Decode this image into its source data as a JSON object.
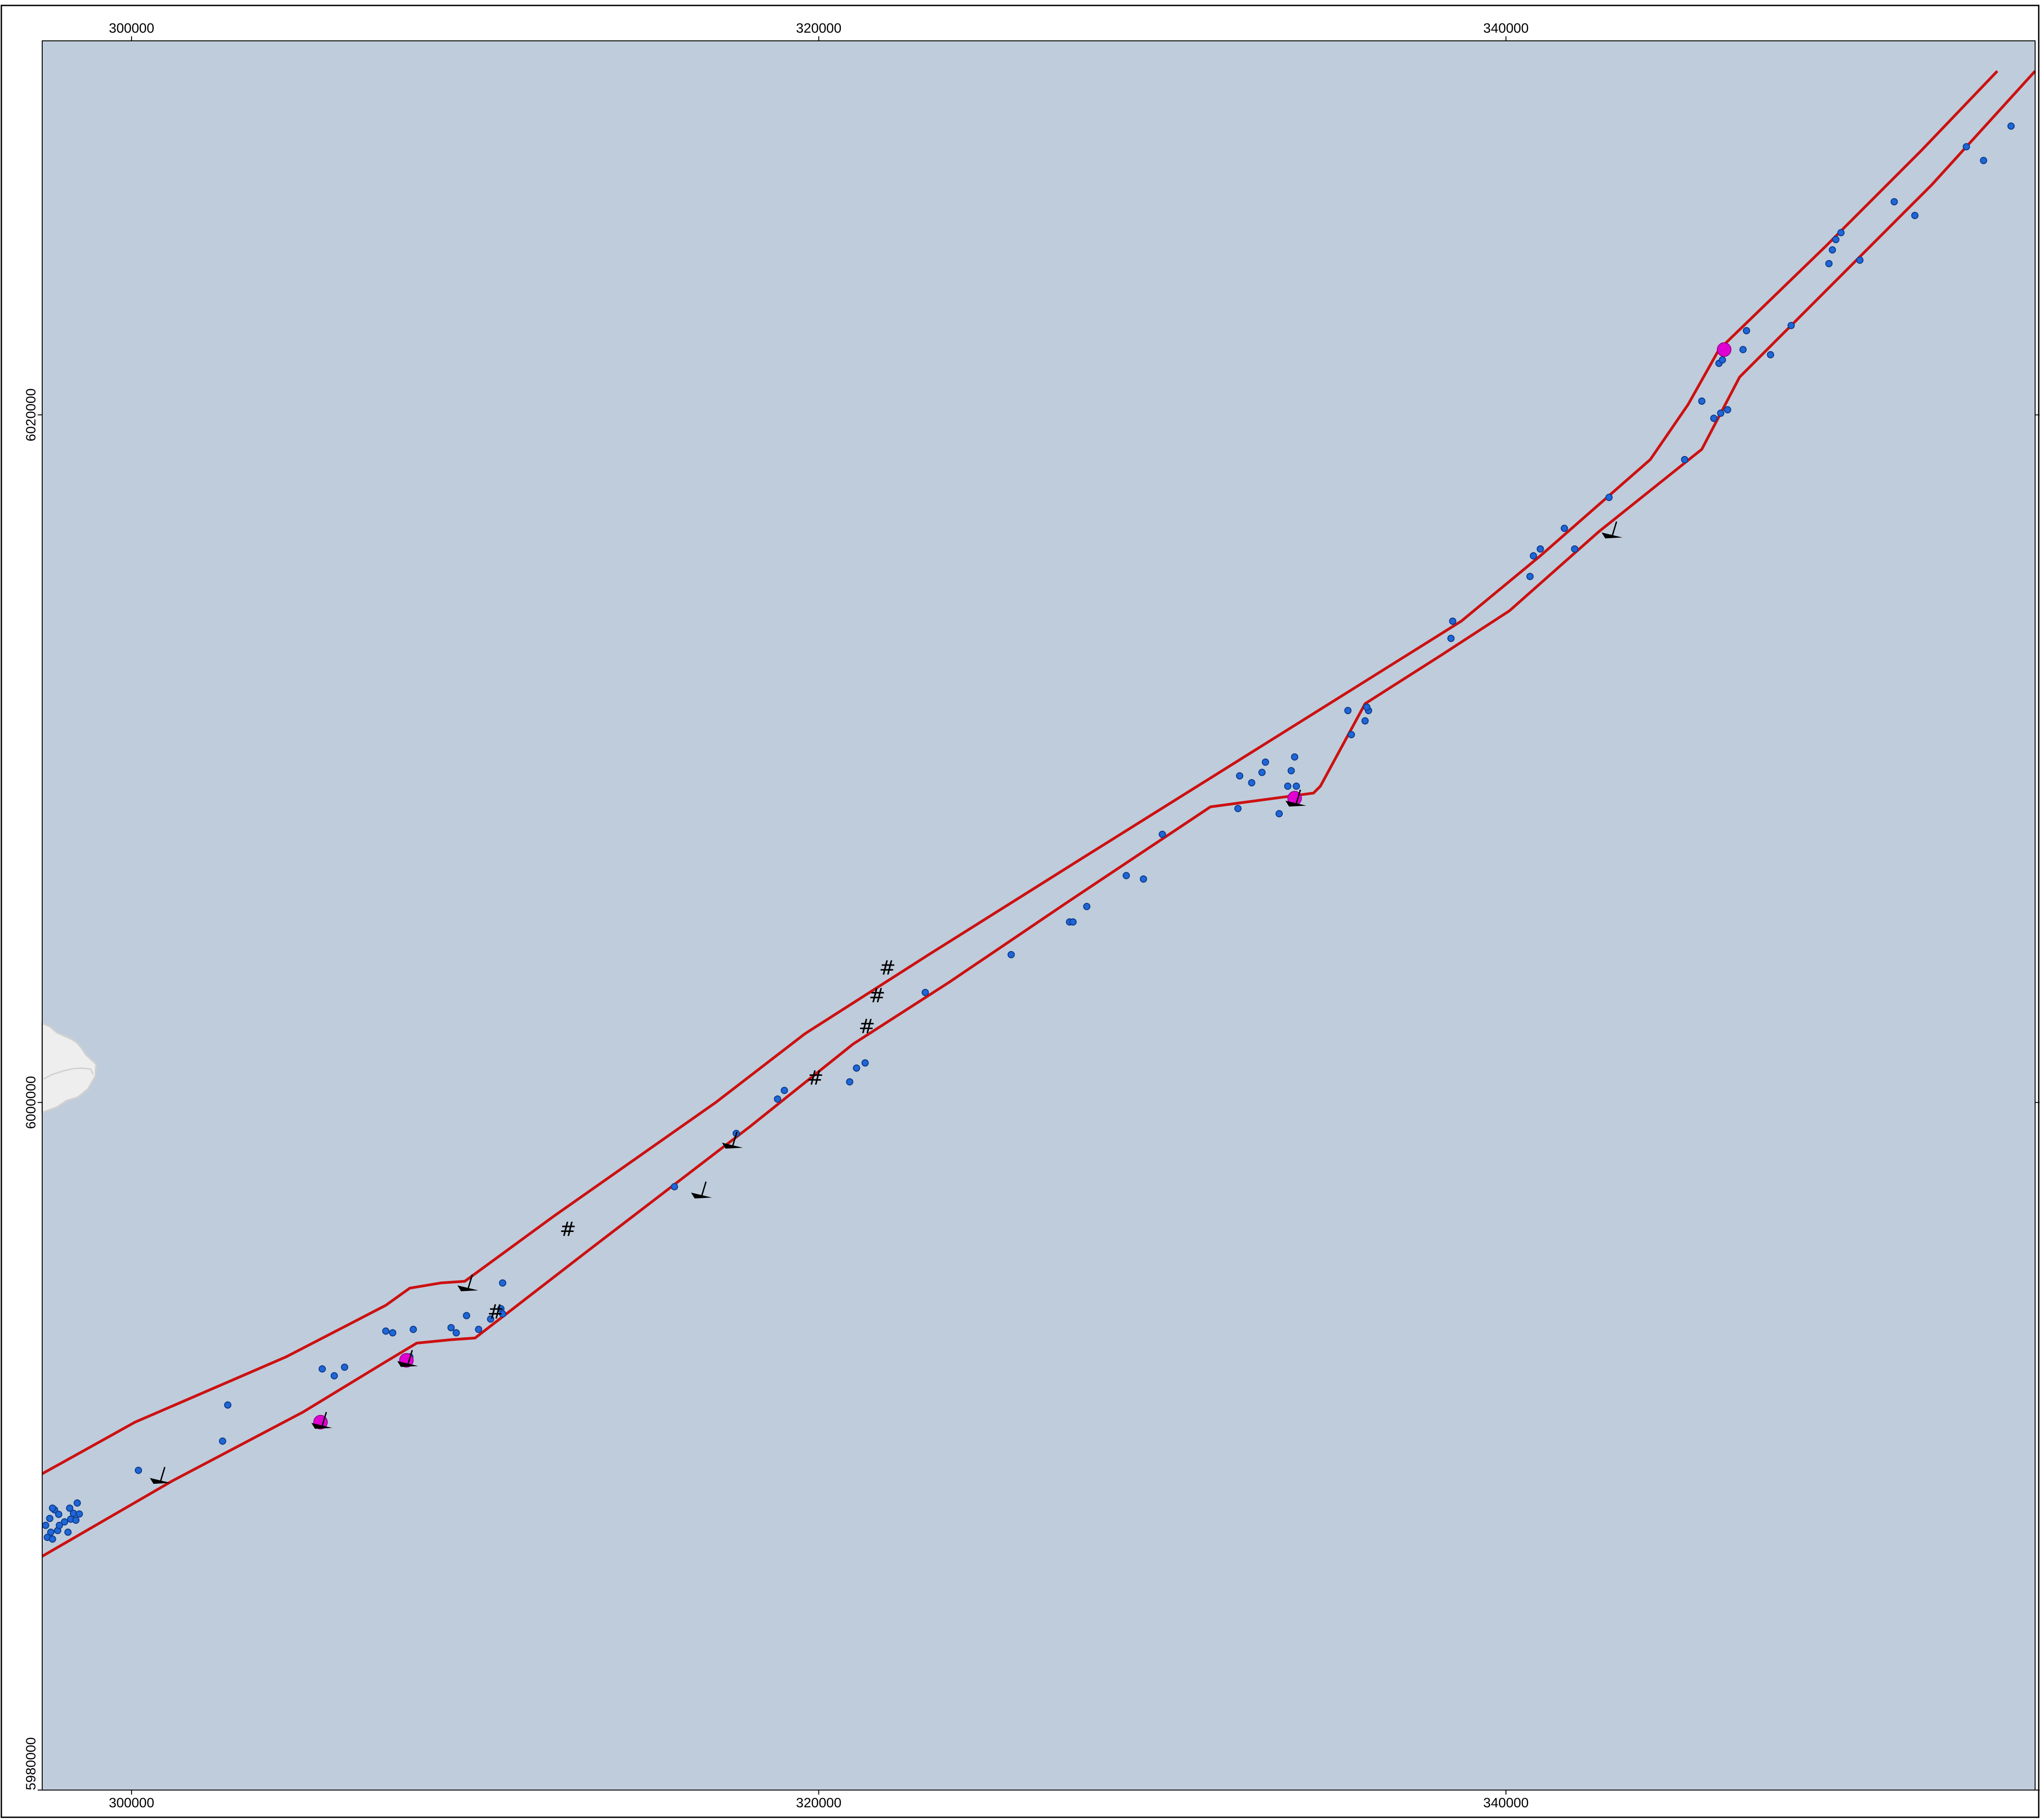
{
  "map": {
    "colors": {
      "water": "#bfccdb",
      "land": "#eeeeee",
      "land_edge": "#d0d0d0",
      "corridor_line": "#cc1111",
      "point_fill": "#1f66d6",
      "point_edge": "#0b3a8a",
      "highlight": "#e100d2",
      "marker": "#000000",
      "frame": "#000000"
    },
    "x_ticks": [
      {
        "value": 300000,
        "label": "300000"
      },
      {
        "value": 320000,
        "label": "320000"
      },
      {
        "value": 340000,
        "label": "340000"
      }
    ],
    "y_ticks": [
      {
        "value": 6020000,
        "label": "6020000"
      },
      {
        "value": 6000000,
        "label": "6000000"
      },
      {
        "value": 5980000,
        "label": "5980000"
      }
    ],
    "extent": {
      "x": [
        297400,
        355400
      ],
      "y": [
        5980000,
        6030880
      ]
    },
    "corridor_upper": [
      [
        297400,
        5989200
      ],
      [
        300100,
        5990700
      ],
      [
        304500,
        5992600
      ],
      [
        307400,
        5994100
      ],
      [
        308100,
        5994600
      ],
      [
        309000,
        5994750
      ],
      [
        309700,
        5994800
      ],
      [
        312300,
        5996700
      ],
      [
        317000,
        6000000
      ],
      [
        319600,
        6002000
      ],
      [
        323200,
        6004300
      ],
      [
        327500,
        6007000
      ],
      [
        331500,
        6009500
      ],
      [
        335500,
        6012000
      ],
      [
        338700,
        6014000
      ],
      [
        341000,
        6015900
      ],
      [
        344200,
        6018700
      ],
      [
        345300,
        6020300
      ],
      [
        346200,
        6021900
      ],
      [
        349300,
        6024900
      ],
      [
        352100,
        6027700
      ],
      [
        354300,
        6030000
      ]
    ],
    "corridor_lower": [
      [
        297400,
        5986800
      ],
      [
        301200,
        5989000
      ],
      [
        305000,
        5991000
      ],
      [
        307300,
        5992400
      ],
      [
        308300,
        5993000
      ],
      [
        309300,
        5993100
      ],
      [
        310000,
        5993150
      ],
      [
        313300,
        5995700
      ],
      [
        318000,
        5999300
      ],
      [
        321000,
        6001700
      ],
      [
        323800,
        6003500
      ],
      [
        327200,
        6005800
      ],
      [
        331400,
        6008600
      ],
      [
        334400,
        6009000
      ],
      [
        334600,
        6009200
      ],
      [
        335900,
        6011600
      ],
      [
        338100,
        6013000
      ],
      [
        340100,
        6014300
      ],
      [
        342700,
        6016600
      ],
      [
        345700,
        6019000
      ],
      [
        346800,
        6021100
      ],
      [
        349800,
        6024100
      ],
      [
        352400,
        6026700
      ],
      [
        355400,
        6030000
      ]
    ],
    "survey_points": [
      [
        297500,
        5987700
      ],
      [
        297550,
        5987350
      ],
      [
        297650,
        5987500
      ],
      [
        297700,
        5987300
      ],
      [
        297850,
        5987550
      ],
      [
        297900,
        5987700
      ],
      [
        297620,
        5987900
      ],
      [
        297760,
        5988150
      ],
      [
        297880,
        5988020
      ],
      [
        298050,
        5987800
      ],
      [
        298150,
        5987500
      ],
      [
        298230,
        5987880
      ],
      [
        298310,
        5988050
      ],
      [
        298200,
        5988200
      ],
      [
        298380,
        5987850
      ],
      [
        298420,
        5988350
      ],
      [
        298480,
        5988030
      ],
      [
        297700,
        5988200
      ],
      [
        300200,
        5989300
      ],
      [
        302650,
        5990150
      ],
      [
        302800,
        5991200
      ],
      [
        305550,
        5992250
      ],
      [
        305900,
        5992050
      ],
      [
        306200,
        5992300
      ],
      [
        307400,
        5993350
      ],
      [
        307600,
        5993300
      ],
      [
        308200,
        5993400
      ],
      [
        308100,
        5992600
      ],
      [
        309300,
        5993450
      ],
      [
        309450,
        5993300
      ],
      [
        309750,
        5993800
      ],
      [
        310100,
        5993400
      ],
      [
        310450,
        5993700
      ],
      [
        310750,
        5994000
      ],
      [
        310800,
        5993850
      ],
      [
        310800,
        5994750
      ],
      [
        315800,
        5997550
      ],
      [
        317600,
        5999100
      ],
      [
        318800,
        6000100
      ],
      [
        319000,
        6000350
      ],
      [
        320900,
        6000600
      ],
      [
        321100,
        6001000
      ],
      [
        321350,
        6001150
      ],
      [
        323100,
        6003200
      ],
      [
        325600,
        6004300
      ],
      [
        327300,
        6005250
      ],
      [
        327400,
        6005250
      ],
      [
        327800,
        6005700
      ],
      [
        328950,
        6006600
      ],
      [
        329450,
        6006500
      ],
      [
        330000,
        6007800
      ],
      [
        332200,
        6008550
      ],
      [
        332250,
        6009500
      ],
      [
        332600,
        6009300
      ],
      [
        332900,
        6009600
      ],
      [
        333000,
        6009900
      ],
      [
        333400,
        6008400
      ],
      [
        333650,
        6009200
      ],
      [
        333750,
        6009650
      ],
      [
        333850,
        6010050
      ],
      [
        333900,
        6009200
      ],
      [
        335500,
        6010700
      ],
      [
        335400,
        6011400
      ],
      [
        335900,
        6011100
      ],
      [
        336000,
        6011400
      ],
      [
        335950,
        6011500
      ],
      [
        338400,
        6013500
      ],
      [
        338450,
        6014000
      ],
      [
        340700,
        6015300
      ],
      [
        340800,
        6015900
      ],
      [
        341000,
        6016100
      ],
      [
        341700,
        6016700
      ],
      [
        342000,
        6016100
      ],
      [
        343000,
        6017600
      ],
      [
        345200,
        6018700
      ],
      [
        345700,
        6020400
      ],
      [
        346050,
        6019900
      ],
      [
        346250,
        6020050
      ],
      [
        346200,
        6021500
      ],
      [
        346450,
        6020150
      ],
      [
        346300,
        6021600
      ],
      [
        346900,
        6021900
      ],
      [
        347000,
        6022450
      ],
      [
        347700,
        6021750
      ],
      [
        348300,
        6022600
      ],
      [
        349400,
        6024400
      ],
      [
        349500,
        6024800
      ],
      [
        349600,
        6025100
      ],
      [
        349750,
        6025300
      ],
      [
        350300,
        6024500
      ],
      [
        351300,
        6026200
      ],
      [
        351900,
        6025800
      ],
      [
        353400,
        6027800
      ],
      [
        353900,
        6027400
      ],
      [
        354700,
        6028400
      ]
    ],
    "highlight_points": [
      [
        305500,
        5990700
      ],
      [
        308000,
        5992500
      ],
      [
        333850,
        6008850
      ],
      [
        346350,
        6021900
      ]
    ],
    "vessel_markers": [
      [
        300850,
        5989000
      ],
      [
        305550,
        5990600
      ],
      [
        308050,
        5992400
      ],
      [
        309800,
        5994600
      ],
      [
        316600,
        5997300
      ],
      [
        317500,
        5998750
      ],
      [
        333900,
        6008700
      ],
      [
        343100,
        6016500
      ]
    ],
    "hash_markers": [
      [
        310600,
        5993900
      ],
      [
        312700,
        5996300
      ],
      [
        319900,
        6000700
      ],
      [
        321400,
        6002200
      ],
      [
        321700,
        6003100
      ],
      [
        322000,
        6003900
      ]
    ]
  }
}
